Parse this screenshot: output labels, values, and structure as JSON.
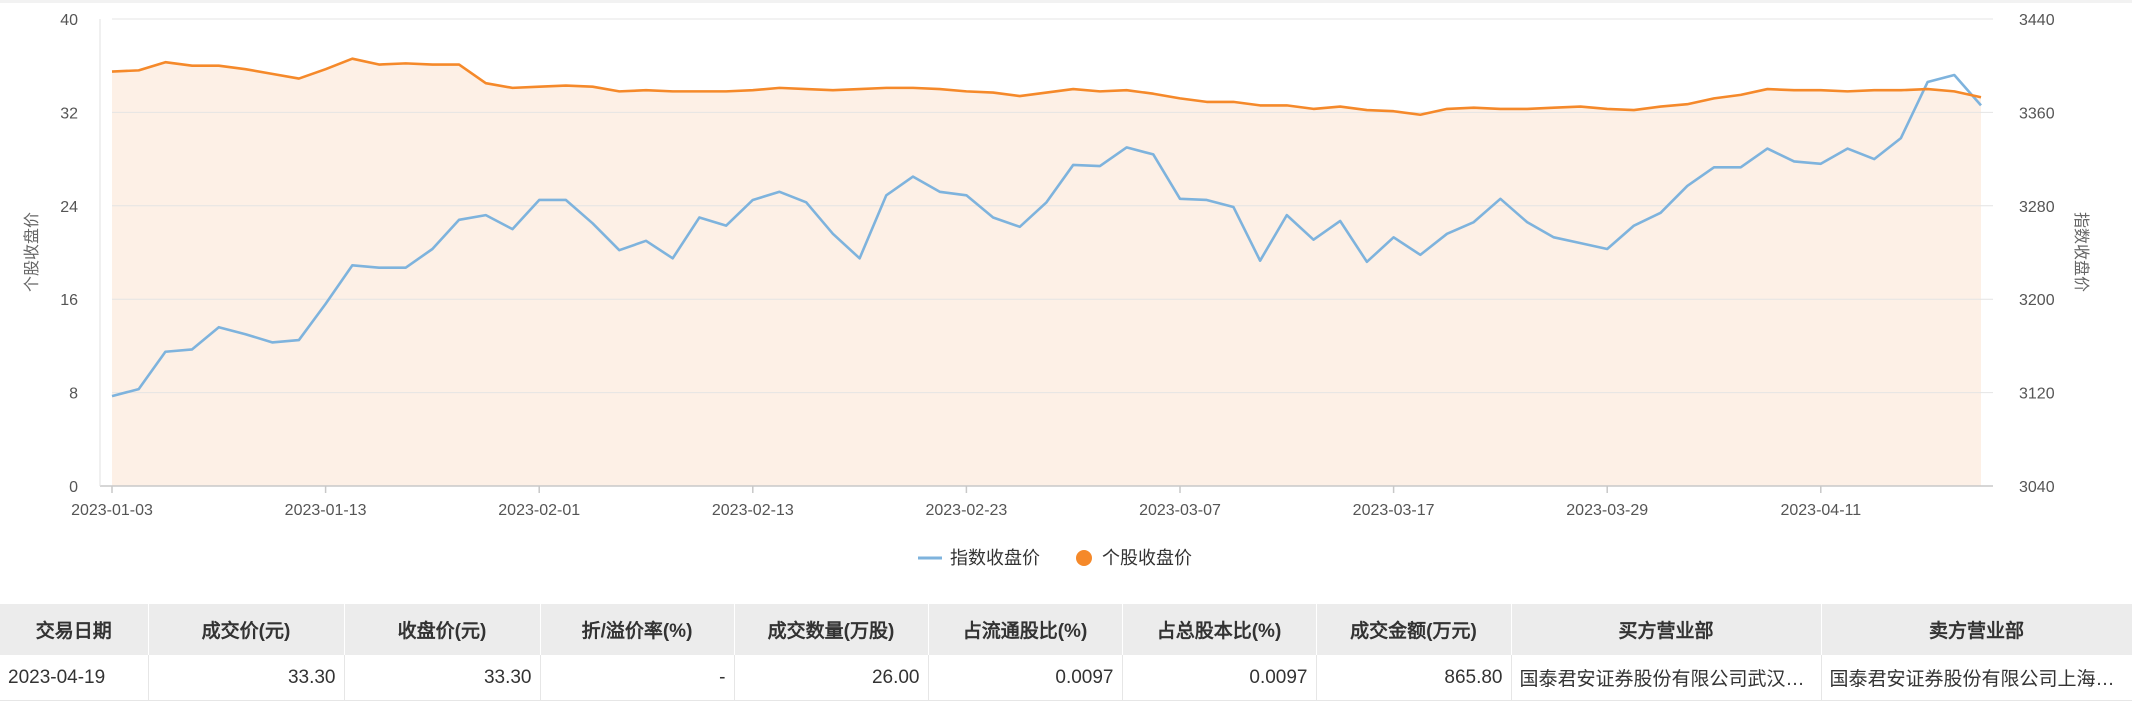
{
  "chart_data": {
    "type": "line",
    "x_tick_labels": [
      "2023-01-03",
      "2023-01-13",
      "2023-02-01",
      "2023-02-13",
      "2023-02-23",
      "2023-03-07",
      "2023-03-17",
      "2023-03-29",
      "2023-04-11"
    ],
    "y_left": {
      "label": "个股收盘价",
      "range": [
        0,
        40
      ],
      "ticks": [
        "0",
        "8",
        "16",
        "24",
        "32",
        "40"
      ]
    },
    "y_right": {
      "label": "指数收盘价",
      "range": [
        3040,
        3440
      ],
      "ticks": [
        "3040",
        "3120",
        "3200",
        "3280",
        "3360",
        "3440"
      ]
    },
    "grid": true,
    "legend_position": "bottom-center",
    "series": [
      {
        "name": "指数收盘价",
        "axis": "right",
        "color": "#7eb3dd",
        "values": [
          3117,
          3123,
          3155,
          3157,
          3176,
          3170,
          3163,
          3165,
          3196,
          3229,
          3227,
          3227,
          3243,
          3268,
          3272,
          3260,
          3285,
          3285,
          3265,
          3242,
          3250,
          3235,
          3270,
          3263,
          3285,
          3292,
          3283,
          3256,
          3235,
          3289,
          3305,
          3292,
          3289,
          3270,
          3262,
          3283,
          3315,
          3314,
          3330,
          3324,
          3286,
          3285,
          3279,
          3233,
          3272,
          3251,
          3267,
          3232,
          3253,
          3238,
          3256,
          3266,
          3286,
          3266,
          3253,
          3248,
          3243,
          3263,
          3274,
          3297,
          3313,
          3313,
          3329,
          3318,
          3316,
          3329,
          3320,
          3338,
          3386,
          3392,
          3366
        ]
      },
      {
        "name": "个股收盘价",
        "axis": "left",
        "color": "#f5892a",
        "values": [
          35.5,
          35.6,
          36.3,
          36.0,
          36.0,
          35.7,
          35.3,
          34.9,
          35.7,
          36.6,
          36.1,
          36.2,
          36.1,
          36.1,
          34.5,
          34.1,
          34.2,
          34.3,
          34.2,
          33.8,
          33.9,
          33.8,
          33.8,
          33.8,
          33.9,
          34.1,
          34.0,
          33.9,
          34.0,
          34.1,
          34.1,
          34.0,
          33.8,
          33.7,
          33.4,
          33.7,
          34.0,
          33.8,
          33.9,
          33.6,
          33.2,
          32.9,
          32.9,
          32.6,
          32.6,
          32.3,
          32.5,
          32.2,
          32.1,
          31.8,
          32.3,
          32.4,
          32.3,
          32.3,
          32.4,
          32.5,
          32.3,
          32.2,
          32.5,
          32.7,
          33.2,
          33.5,
          34.0,
          33.9,
          33.9,
          33.8,
          33.9,
          33.9,
          34.0,
          33.8,
          33.3
        ]
      }
    ]
  },
  "table": {
    "headers": [
      "交易日期",
      "成交价(元)",
      "收盘价(元)",
      "折/溢价率(%)",
      "成交数量(万股)",
      "占流通股比(%)",
      "占总股本比(%)",
      "成交金额(万元)",
      "买方营业部",
      "卖方营业部"
    ],
    "rows": [
      [
        "2023-04-19",
        "33.30",
        "33.30",
        "-",
        "26.00",
        "0.0097",
        "0.0097",
        "865.80",
        "国泰君安证券股份有限公司武汉分公司",
        "国泰君安证券股份有限公司上海分公司"
      ]
    ]
  },
  "colors": {
    "area_fill": "#fdf0e6",
    "grid": "#e4e4e4",
    "header_bg": "#ececec"
  }
}
